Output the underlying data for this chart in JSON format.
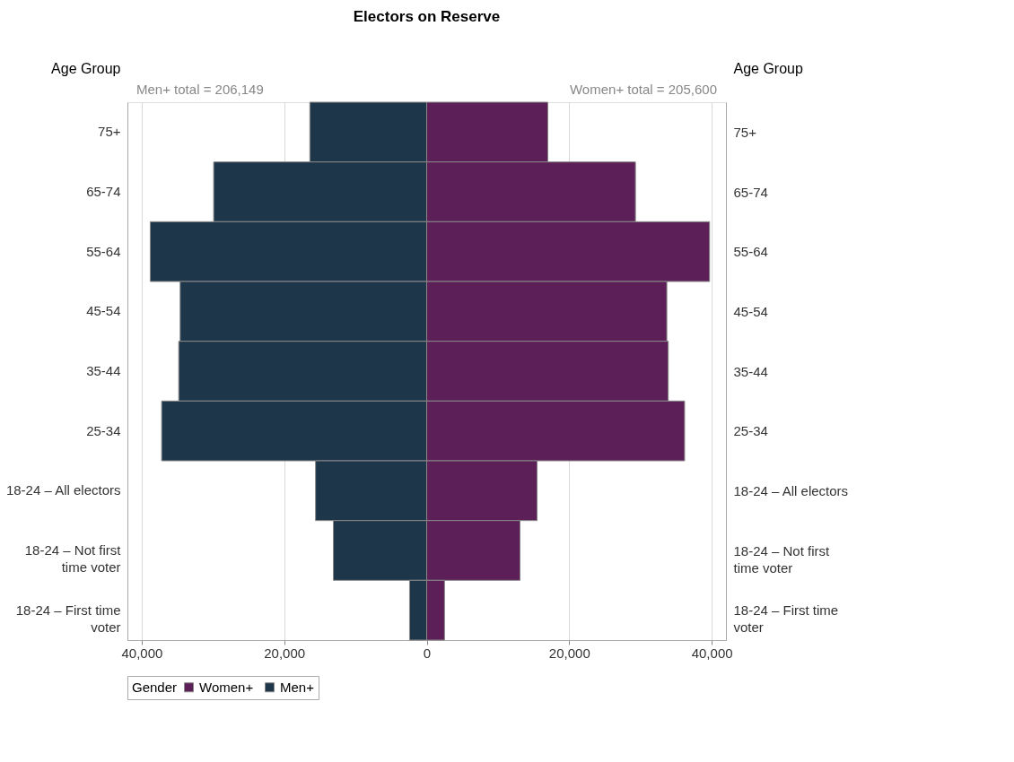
{
  "chart_data": {
    "type": "bar",
    "orientation": "horizontal",
    "stacked": true,
    "title": "Electors on Reserve",
    "ylabel": "Age Group",
    "y2label": "Age Group",
    "legend_title": "Gender",
    "legend": "bottom",
    "grid": "x",
    "categories": [
      "75+",
      "65-74",
      "55-64",
      "45-54",
      "35-44",
      "25-34",
      "18-24 – All electors",
      "18-24 – Not first time voter",
      "18-24 – First time voter"
    ],
    "series": [
      {
        "name": "Women+",
        "color": "#5c1f57",
        "values": [
          17000,
          29300,
          39700,
          33700,
          33900,
          36200,
          15500,
          13100,
          2500
        ]
      },
      {
        "name": "Men+",
        "color": "#1e364a",
        "values": [
          -16400,
          -29900,
          -38800,
          -34600,
          -34800,
          -37200,
          -15600,
          -13100,
          -2400
        ]
      }
    ],
    "xlim": [
      -42000,
      42000
    ],
    "xticks": [
      {
        "value": -40000,
        "label": "40,000"
      },
      {
        "value": -20000,
        "label": "20,000"
      },
      0,
      {
        "value": 20000,
        "label": "20,000"
      },
      {
        "value": 40000,
        "label": "40,000"
      }
    ],
    "annotations": [
      "Men+ total = 206,149",
      "Women+ total = 205,600"
    ]
  }
}
